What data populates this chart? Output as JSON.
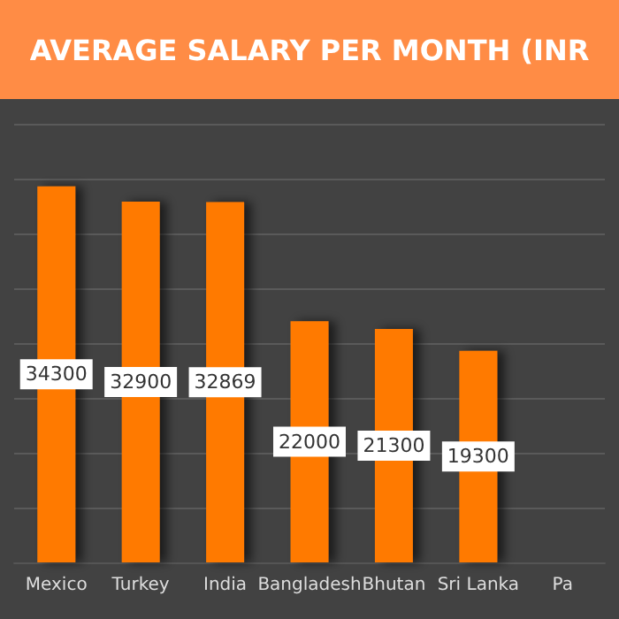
{
  "chart_data": {
    "type": "bar",
    "title": "AVERAGE SALARY PER MONTH (INR",
    "categories": [
      "Mexico",
      "Turkey",
      "India",
      "Bangladesh",
      "Bhutan",
      "Sri Lanka",
      "Pa"
    ],
    "values": [
      34300,
      32900,
      32869,
      22000,
      21300,
      19300,
      null
    ],
    "color": "#ff7a00",
    "data_labels": true,
    "grid": "y",
    "tick_labels": "x",
    "ylim": [
      0,
      40000
    ],
    "yticks": [
      {
        "value": 0,
        "label": null
      },
      {
        "value": 5000,
        "label": null
      },
      {
        "value": 10000,
        "label": null
      },
      {
        "value": 15000,
        "label": null
      },
      {
        "value": 20000,
        "label": null
      },
      {
        "value": 25000,
        "label": null
      },
      {
        "value": 30000,
        "label": null
      },
      {
        "value": 35000,
        "label": null
      },
      {
        "value": 40000,
        "label": null
      }
    ]
  }
}
